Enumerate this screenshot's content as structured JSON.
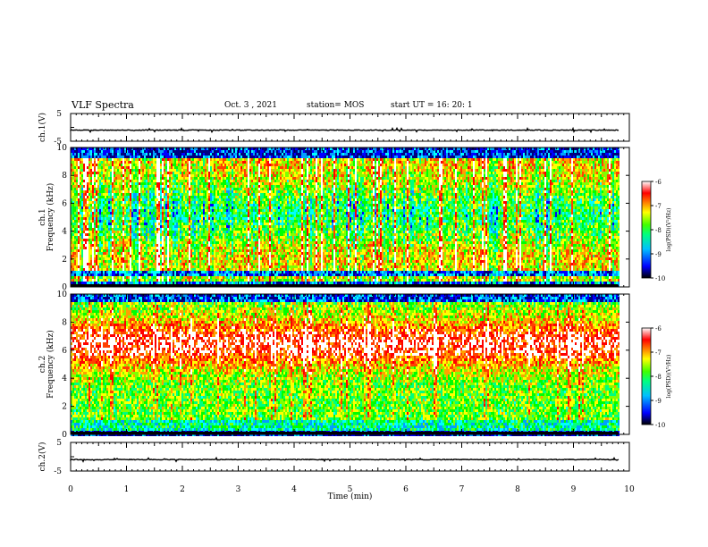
{
  "header": {
    "title": "VLF Spectra",
    "date": "Oct. 3 , 2021",
    "station": "station= MOS",
    "start_ut": "start UT =   16: 20: 1"
  },
  "colors": {
    "spectrum": [
      "#000080",
      "#0000ff",
      "#00a0ff",
      "#00ffff",
      "#00ff80",
      "#00ff00",
      "#80ff00",
      "#ffff00",
      "#ffa000",
      "#ff4000",
      "#ff0000",
      "#ffffff"
    ]
  },
  "chart_data": [
    {
      "type": "line",
      "name": "ch1-waveform",
      "ylabel": "ch.1(V)",
      "ylim": [
        -5,
        5
      ],
      "yticks": [
        "5",
        "-5"
      ],
      "xlim": [
        0,
        10
      ],
      "description_baseline": -1.0
    },
    {
      "type": "heatmap",
      "name": "ch1-spectrogram",
      "ylabel_line1": "ch.1",
      "ylabel_line2": "Frequency (kHz)",
      "ylim": [
        0,
        10
      ],
      "yticks": [
        "0",
        "2",
        "4",
        "6",
        "8",
        "10"
      ],
      "xlim": [
        0,
        10
      ],
      "data_end_min": 9.8,
      "colorbar": {
        "label": "log(PSD)(V²/Hz)",
        "range": [
          -10,
          -6
        ],
        "ticks": [
          "-6",
          "-7",
          "-8",
          "-9",
          "-10"
        ]
      }
    },
    {
      "type": "heatmap",
      "name": "ch2-spectrogram",
      "ylabel_line1": "ch.2",
      "ylabel_line2": "Frequency (kHz)",
      "ylim": [
        0,
        10
      ],
      "yticks": [
        "0",
        "2",
        "4",
        "6",
        "8",
        "10"
      ],
      "xlim": [
        0,
        10
      ],
      "data_end_min": 9.8,
      "colorbar": {
        "label": "log(PSD)(V²/Hz)",
        "range": [
          -10,
          -6
        ],
        "ticks": [
          "-6",
          "-7",
          "-8",
          "-9",
          "-10"
        ]
      }
    },
    {
      "type": "line",
      "name": "ch2-waveform",
      "ylabel": "ch.2(V)",
      "ylim": [
        -5,
        5
      ],
      "yticks": [
        "5",
        "-5"
      ],
      "xlim": [
        0,
        10
      ],
      "xticks": [
        "0",
        "1",
        "2",
        "3",
        "4",
        "5",
        "6",
        "7",
        "8",
        "9",
        "10"
      ],
      "xlabel": "Time (min)"
    }
  ]
}
